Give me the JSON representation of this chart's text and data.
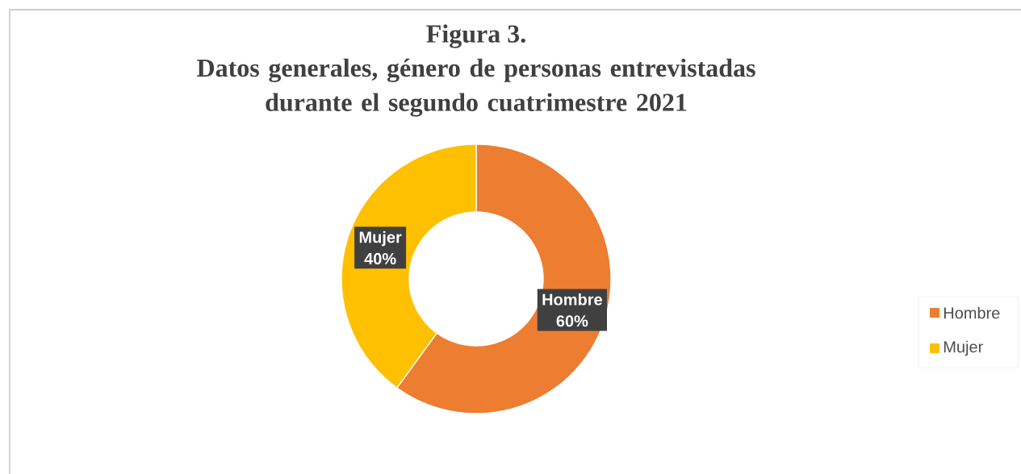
{
  "chart_data": {
    "type": "donut",
    "title": "Figura 3.",
    "subtitle": "Datos generales, género de personas entrevistadas durante el segundo cuatrimestre 2021",
    "categories": [
      "Hombre",
      "Mujer"
    ],
    "values": [
      60,
      40
    ],
    "colors": [
      "#ed7d31",
      "#ffc000"
    ],
    "value_labels": [
      "60%",
      "40%"
    ],
    "legend": "right"
  }
}
